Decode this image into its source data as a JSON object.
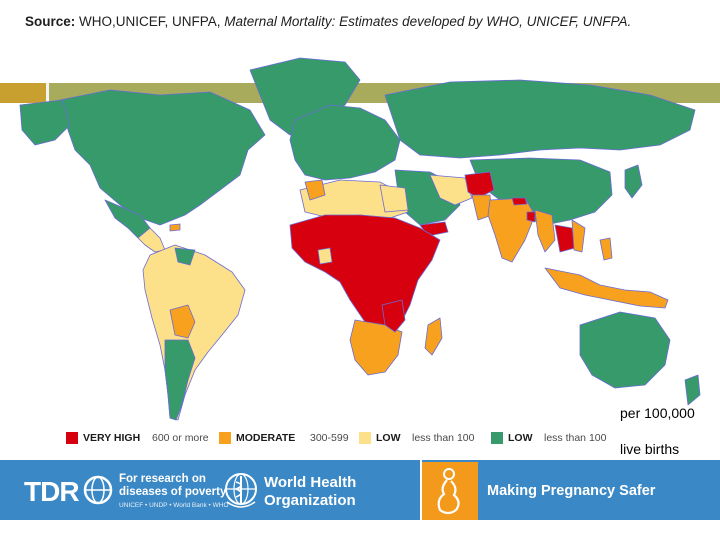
{
  "source": {
    "label": "Source:",
    "orgs": "WHO,UNICEF, UNFPA,",
    "title": "Maternal Mortality:",
    "rest": "Estimates developed by WHO, UNICEF, UNFPA."
  },
  "legend": {
    "items": [
      {
        "label": "VERY HIGH",
        "range": "600 or more",
        "color": "#d7000f"
      },
      {
        "label": "MODERATE",
        "range": "300-599",
        "color": "#f7a11e"
      },
      {
        "label": "LOW",
        "range": "less than 100",
        "color": "#fde08a"
      },
      {
        "label": "LOW",
        "range": "less than 100",
        "color": "#369a6b"
      }
    ]
  },
  "units": {
    "line1": "per 100,000",
    "line2": "live births"
  },
  "footer": {
    "tdr_letters": "TDR",
    "tdr_tagline_1": "For research on",
    "tdr_tagline_2": "diseases of poverty",
    "tdr_sponsors": "UNICEF • UNDP • World Bank • WHO",
    "who_line1": "World Health",
    "who_line2": "Organization",
    "mps_text": "Making Pregnancy Safer"
  },
  "colors": {
    "very_high": "#d7000f",
    "moderate": "#f7a11e",
    "low_yellow": "#fde08a",
    "low_green": "#369a6b",
    "ocean": "#ffffff",
    "border": "#6b6bd6",
    "footer_bg": "#3a88c5",
    "accent_bar": "#a9ab5c"
  }
}
